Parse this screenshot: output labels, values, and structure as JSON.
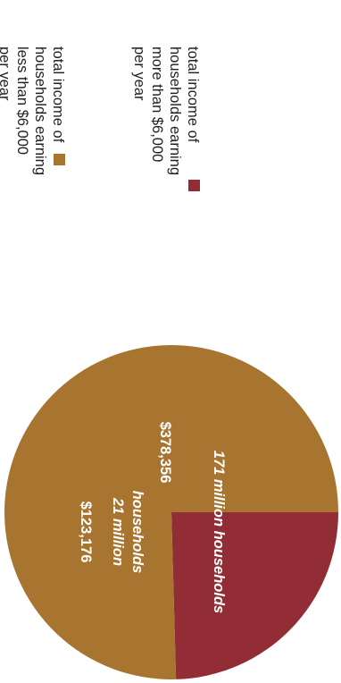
{
  "chart_data": {
    "type": "pie",
    "title": "",
    "slices": [
      {
        "value": 123176,
        "amount_label": "$123,176",
        "households_line1": "21 million",
        "households_line2": "households",
        "color": "#922d35",
        "legend": [
          "total income of",
          "households earning",
          "more than $6,000",
          "per year"
        ]
      },
      {
        "value": 378356,
        "amount_label": "$378,356",
        "households_line1": "171 million households",
        "color": "#a87531",
        "legend": [
          "total income of",
          "households earning",
          "less than $6,000",
          "per year"
        ]
      }
    ]
  }
}
